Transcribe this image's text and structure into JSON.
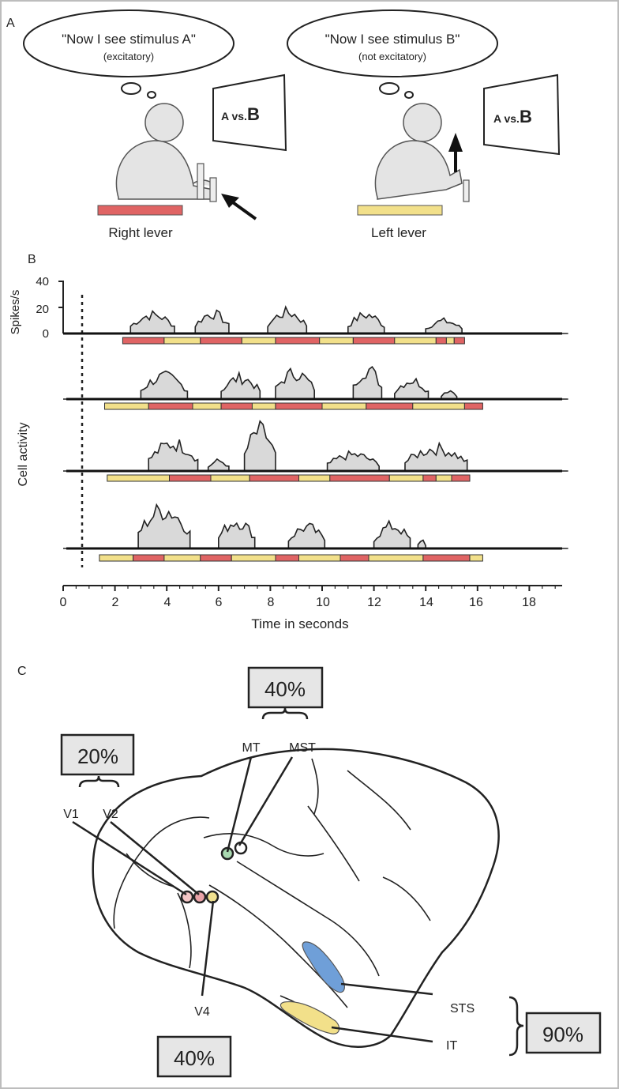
{
  "panel_a": {
    "label": "A",
    "left": {
      "thought_line1": "\"Now I see stimulus A\"",
      "thought_line2": "(excitatory)",
      "screen_prefix": "A vs.",
      "screen_emph": "B",
      "lever_label": "Right lever",
      "lever_color": "#e06464"
    },
    "right": {
      "thought_line1": "\"Now I see stimulus B\"",
      "thought_line2": "(not excitatory)",
      "screen_prefix": "A vs.",
      "screen_emph": "B",
      "lever_label": "Left lever",
      "lever_color": "#f2e08a"
    }
  },
  "panel_b": {
    "label": "B",
    "ylabel_top": "Spikes/s",
    "yticks": [
      "40",
      "20",
      "0"
    ],
    "ylabel_side": "Cell activity",
    "xlabel": "Time in seconds",
    "xticks": [
      "0",
      "2",
      "4",
      "6",
      "8",
      "10",
      "12",
      "14",
      "16",
      "18"
    ],
    "colors": {
      "right_lever": "#e06464",
      "left_lever": "#f2e08a",
      "fill": "#d9d9d9"
    }
  },
  "panel_c": {
    "label": "C",
    "box_mt": "40%",
    "box_v1": "20%",
    "box_v4": "40%",
    "box_it": "90%",
    "areas": {
      "mt": "MT",
      "mst": "MST",
      "v1": "V1",
      "v2": "V2",
      "v4": "V4",
      "sts": "STS",
      "it": "IT"
    },
    "colors": {
      "sts": "#6f9fd8",
      "it": "#f2e08a",
      "v1_dot": "#f3c6c6",
      "v2_dot": "#e9a3a8",
      "v4_dot": "#efe08f",
      "mt_dot": "#a9d9b0"
    }
  }
}
